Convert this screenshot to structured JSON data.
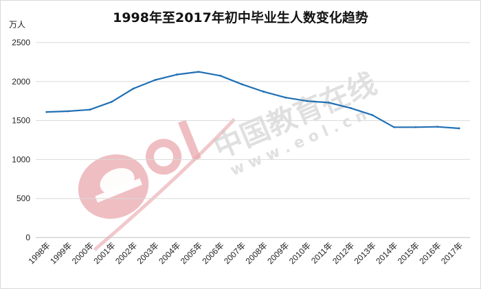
{
  "chart_data": {
    "type": "line",
    "title": "1998年至2017年初中毕业生人数变化趋势",
    "ylabel": "万人",
    "xlabel": "",
    "ylim": [
      0,
      2500
    ],
    "yticks": [
      0,
      500,
      1000,
      1500,
      2000,
      2500
    ],
    "grid": true,
    "legend": "none",
    "categories": [
      "1998年",
      "1999年",
      "2000年",
      "2001年",
      "2002年",
      "2003年",
      "2004年",
      "2005年",
      "2006年",
      "2007年",
      "2008年",
      "2009年",
      "2010年",
      "2011年",
      "2012年",
      "2013年",
      "2014年",
      "2015年",
      "2016年",
      "2017年"
    ],
    "series": [
      {
        "values": [
          1610,
          1620,
          1640,
          1740,
          1910,
          2020,
          2090,
          2125,
          2075,
          1965,
          1870,
          1795,
          1750,
          1730,
          1660,
          1570,
          1415,
          1415,
          1420,
          1400
        ],
        "color": "#1f6fb4"
      }
    ]
  },
  "watermark": {
    "cn_text": "中国教育在线",
    "url_text": "w w w . e o l . c n",
    "logo_text": "eol",
    "logo_color": "#e8a3a8",
    "text_color": "#c8c8c8"
  }
}
